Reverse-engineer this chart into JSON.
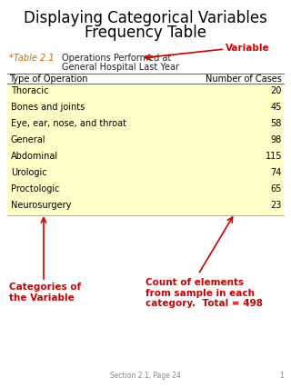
{
  "title_line1": "Displaying Categorical Variables",
  "title_line2": "Frequency Table",
  "table_label": "*Table 2.1",
  "table_title_line1": "Operations Performed at",
  "table_title_line2": "General Hospital Last Year",
  "col_header_left": "Type of Operation",
  "col_header_right": "Number of Cases",
  "rows": [
    [
      "Thoracic",
      "20"
    ],
    [
      "Bones and joints",
      "45"
    ],
    [
      "Eye, ear, nose, and throat",
      "58"
    ],
    [
      "General",
      "98"
    ],
    [
      "Abdominal",
      "115"
    ],
    [
      "Urologic",
      "74"
    ],
    [
      "Proctologic",
      "65"
    ],
    [
      "Neurosurgery",
      "23"
    ]
  ],
  "row_bg_color": "#ffffc8",
  "table_label_color": "#c07000",
  "annotation_color": "#cc0000",
  "variable_label": "Variable",
  "categories_label": "Categories of\nthe Variable",
  "count_label": "Count of elements\nfrom sample in each\ncategory.  Total = 498",
  "footer": "Section 2.1, Page 24",
  "page_num": "1",
  "bg_color": "#ffffff",
  "title_fontsize": 12,
  "table_label_fontsize": 7,
  "header_fontsize": 7,
  "row_fontsize": 7,
  "annot_fontsize": 7.5,
  "footer_fontsize": 5.5
}
